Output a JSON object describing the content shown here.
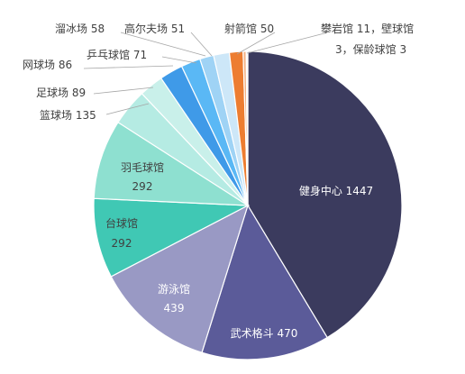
{
  "chart_data": {
    "type": "pie",
    "categories": [
      "健身中心",
      "武术格斗",
      "游泳馆",
      "台球馆",
      "羽毛球馆",
      "篮球场",
      "足球场",
      "网球场",
      "乒乓球馆",
      "高尔夫场",
      "溜冰场",
      "射箭馆",
      "攀岩馆",
      "壁球馆",
      "保龄球馆"
    ],
    "values": [
      1447,
      470,
      439,
      292,
      292,
      135,
      89,
      86,
      71,
      51,
      58,
      50,
      11,
      3,
      3
    ],
    "colors": [
      "#3b3b5e",
      "#5b5b99",
      "#9999c4",
      "#40c8b4",
      "#8ee0d0",
      "#b5ebe3",
      "#c9f0ea",
      "#3f9ae8",
      "#5ab8f5",
      "#9fd3f5",
      "#cde7f8",
      "#ed7d31",
      "#f4b183",
      "#f8cbad",
      "#fbe5d6"
    ],
    "labels": [
      {
        "line1": "健身中心  1447"
      },
      {
        "line1": "武术格斗  470"
      },
      {
        "line1": "游泳馆",
        "line2": "439"
      },
      {
        "line1": "台球馆",
        "line2": "292"
      },
      {
        "line1": "羽毛球馆",
        "line2": "292"
      },
      {
        "line1": "篮球场  135"
      },
      {
        "line1": "足球场  89"
      },
      {
        "line1": "网球场  86"
      },
      {
        "line1": "乒乓球馆  71"
      },
      {
        "line1": "高尔夫场  51"
      },
      {
        "line1": "溜冰场  58"
      },
      {
        "line1": "射箭馆  50"
      },
      {
        "line1": "攀岩馆  11，壁球馆",
        "line2": "3，保龄球馆  3"
      }
    ]
  }
}
